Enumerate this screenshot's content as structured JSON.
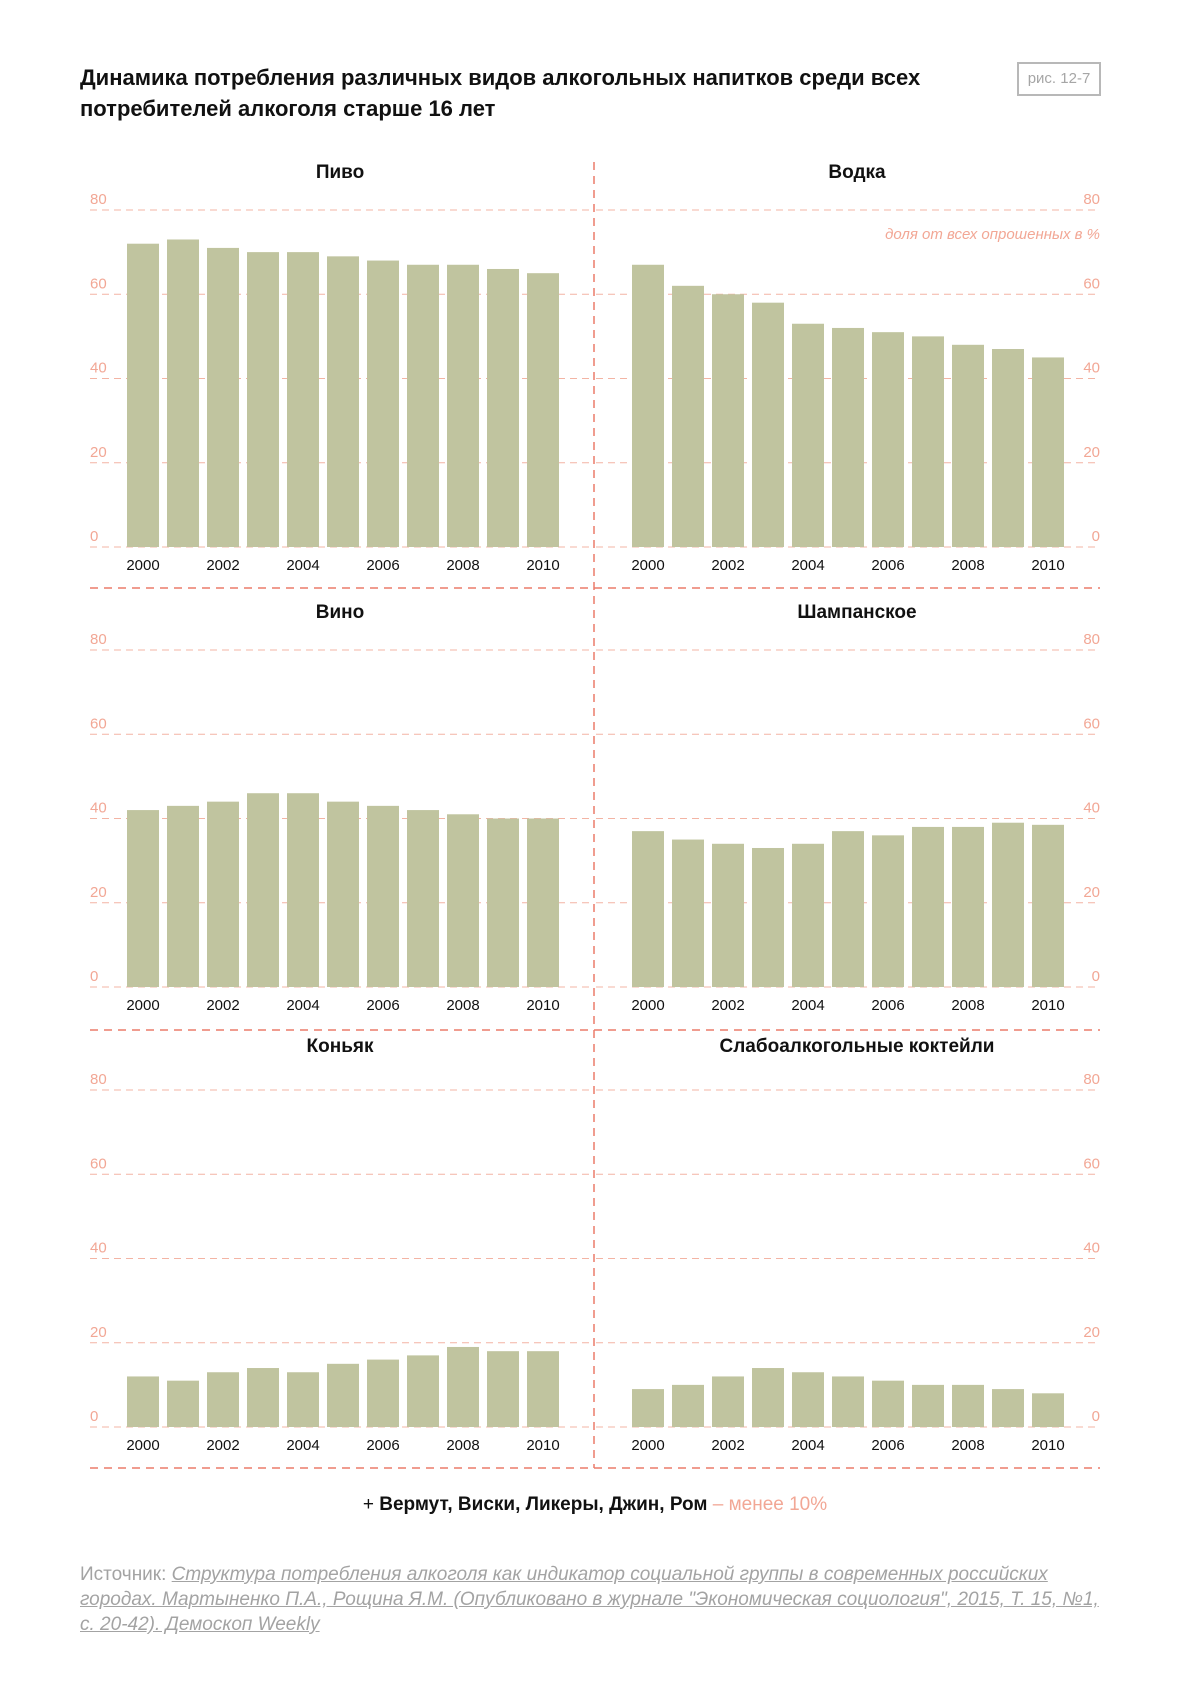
{
  "header": {
    "title": "Динамика потребления различных видов алкогольных напитков среди всех потребителей алкоголя старше 16 лет",
    "badge": "рис. 12-7"
  },
  "chart_data": [
    {
      "type": "bar",
      "title": "Пиво",
      "categories": [
        "2000",
        "2001",
        "2002",
        "2003",
        "2004",
        "2005",
        "2006",
        "2007",
        "2008",
        "2009",
        "2010"
      ],
      "values": [
        72,
        73,
        71,
        70,
        70,
        69,
        68,
        67,
        67,
        66,
        65
      ],
      "ylim": [
        0,
        80
      ],
      "yticks": [
        "0",
        "20",
        "40",
        "60",
        "80"
      ],
      "xticks": [
        "2000",
        "2002",
        "2004",
        "2006",
        "2008",
        "2010"
      ],
      "color": "#c0c49f",
      "ylabel": ""
    },
    {
      "type": "bar",
      "title": "Водка",
      "categories": [
        "2000",
        "2001",
        "2002",
        "2003",
        "2004",
        "2005",
        "2006",
        "2007",
        "2008",
        "2009",
        "2010"
      ],
      "values": [
        67,
        62,
        60,
        58,
        53,
        52,
        51,
        50,
        48,
        47,
        45
      ],
      "ylim": [
        0,
        80
      ],
      "yticks": [
        "0",
        "20",
        "40",
        "60",
        "80"
      ],
      "xticks": [
        "2000",
        "2002",
        "2004",
        "2006",
        "2008",
        "2010"
      ],
      "color": "#c0c49f",
      "ylabel": "доля от всех опрошенных в %"
    },
    {
      "type": "bar",
      "title": "Вино",
      "categories": [
        "2000",
        "2001",
        "2002",
        "2003",
        "2004",
        "2005",
        "2006",
        "2007",
        "2008",
        "2009",
        "2010"
      ],
      "values": [
        42,
        43,
        44,
        46,
        46,
        44,
        43,
        42,
        41,
        40,
        40
      ],
      "ylim": [
        0,
        80
      ],
      "yticks": [
        "0",
        "20",
        "40",
        "60",
        "80"
      ],
      "xticks": [
        "2000",
        "2002",
        "2004",
        "2006",
        "2008",
        "2010"
      ],
      "color": "#c0c49f",
      "ylabel": ""
    },
    {
      "type": "bar",
      "title": "Шампанское",
      "categories": [
        "2000",
        "2001",
        "2002",
        "2003",
        "2004",
        "2005",
        "2006",
        "2007",
        "2008",
        "2009",
        "2010"
      ],
      "values": [
        37,
        35,
        34,
        33,
        34,
        37,
        36,
        38,
        38,
        39,
        38.5
      ],
      "ylim": [
        0,
        80
      ],
      "yticks": [
        "0",
        "20",
        "40",
        "60",
        "80"
      ],
      "xticks": [
        "2000",
        "2002",
        "2004",
        "2006",
        "2008",
        "2010"
      ],
      "color": "#c0c49f",
      "ylabel": ""
    },
    {
      "type": "bar",
      "title": "Коньяк",
      "categories": [
        "2000",
        "2001",
        "2002",
        "2003",
        "2004",
        "2005",
        "2006",
        "2007",
        "2008",
        "2009",
        "2010"
      ],
      "values": [
        12,
        11,
        13,
        14,
        13,
        15,
        16,
        17,
        19,
        18,
        18
      ],
      "ylim": [
        0,
        80
      ],
      "yticks": [
        "0",
        "20",
        "40",
        "60",
        "80"
      ],
      "xticks": [
        "2000",
        "2002",
        "2004",
        "2006",
        "2008",
        "2010"
      ],
      "color": "#c0c49f",
      "ylabel": ""
    },
    {
      "type": "bar",
      "title": "Слабоалкогольные коктейли",
      "categories": [
        "2000",
        "2001",
        "2002",
        "2003",
        "2004",
        "2005",
        "2006",
        "2007",
        "2008",
        "2009",
        "2010"
      ],
      "values": [
        9,
        10,
        12,
        14,
        13,
        12,
        11,
        10,
        10,
        9,
        8
      ],
      "ylim": [
        0,
        80
      ],
      "yticks": [
        "0",
        "20",
        "40",
        "60",
        "80"
      ],
      "xticks": [
        "2000",
        "2002",
        "2004",
        "2006",
        "2008",
        "2010"
      ],
      "color": "#c0c49f",
      "ylabel": ""
    }
  ],
  "note": {
    "prefix": "+ ",
    "bold": "Вермут, Виски, Ликеры, Джин, Ром",
    "muted": " – менее 10%"
  },
  "source": {
    "label": "Источник: ",
    "link": "Структура потребления алкоголя как индикатор социальной группы в современных российских городах. Мартыненко П.А., Рощина Я.М. (Опубликовано в журнале \"Экономическая социология\", 2015, Т. 15, №1, с. 20-42). Демоскоп Weekly"
  },
  "colors": {
    "bar": "#c0c49f",
    "grid": "#f2a795",
    "divider": "#ec7b6a"
  }
}
